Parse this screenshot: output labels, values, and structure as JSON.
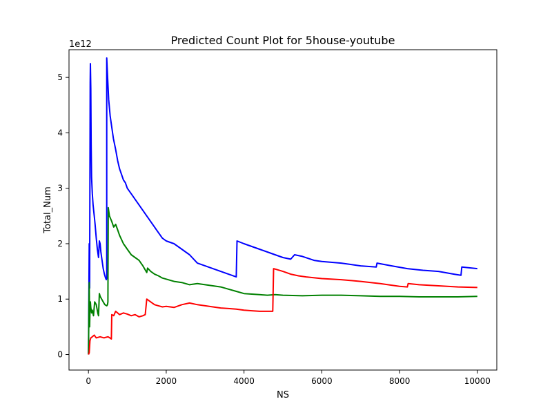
{
  "chart_data": {
    "type": "line",
    "title": "Predicted Count Plot for 5house-youtube",
    "xlabel": "NS",
    "ylabel": "Total_Num",
    "offset_text": "1e12",
    "xlim": [
      -500,
      10500
    ],
    "ylim": [
      -0.28,
      5.5
    ],
    "x_ticks": [
      0,
      2000,
      4000,
      6000,
      8000,
      10000
    ],
    "x_tick_labels": [
      "0",
      "2000",
      "4000",
      "6000",
      "8000",
      "10000"
    ],
    "y_ticks": [
      0,
      1,
      2,
      3,
      4,
      5
    ],
    "y_tick_labels": [
      "0",
      "1",
      "2",
      "3",
      "4",
      "5"
    ],
    "grid": false,
    "legend": "none",
    "series": [
      {
        "color": "#0000ff",
        "points": [
          [
            0,
            0
          ],
          [
            20,
            2.0
          ],
          [
            25,
            1.6
          ],
          [
            30,
            1.2
          ],
          [
            40,
            3.5
          ],
          [
            45,
            4.9
          ],
          [
            50,
            5.25
          ],
          [
            60,
            4.8
          ],
          [
            70,
            3.8
          ],
          [
            80,
            3.2
          ],
          [
            100,
            2.9
          ],
          [
            120,
            2.7
          ],
          [
            150,
            2.5
          ],
          [
            170,
            2.35
          ],
          [
            200,
            2.1
          ],
          [
            230,
            1.9
          ],
          [
            260,
            1.75
          ],
          [
            280,
            2.05
          ],
          [
            300,
            2.0
          ],
          [
            320,
            1.85
          ],
          [
            350,
            1.7
          ],
          [
            380,
            1.55
          ],
          [
            410,
            1.45
          ],
          [
            440,
            1.38
          ],
          [
            460,
            1.35
          ],
          [
            470,
            1.38
          ],
          [
            470,
            5.35
          ],
          [
            480,
            5.2
          ],
          [
            520,
            4.6
          ],
          [
            560,
            4.3
          ],
          [
            600,
            4.1
          ],
          [
            640,
            3.9
          ],
          [
            700,
            3.7
          ],
          [
            750,
            3.5
          ],
          [
            800,
            3.35
          ],
          [
            850,
            3.25
          ],
          [
            900,
            3.15
          ],
          [
            950,
            3.1
          ],
          [
            1000,
            3.0
          ],
          [
            1100,
            2.9
          ],
          [
            1200,
            2.8
          ],
          [
            1300,
            2.7
          ],
          [
            1400,
            2.6
          ],
          [
            1500,
            2.5
          ],
          [
            1600,
            2.4
          ],
          [
            1700,
            2.3
          ],
          [
            1800,
            2.2
          ],
          [
            1900,
            2.1
          ],
          [
            2000,
            2.05
          ],
          [
            2200,
            2.0
          ],
          [
            2400,
            1.9
          ],
          [
            2600,
            1.8
          ],
          [
            2800,
            1.65
          ],
          [
            3000,
            1.6
          ],
          [
            3200,
            1.55
          ],
          [
            3400,
            1.5
          ],
          [
            3600,
            1.45
          ],
          [
            3800,
            1.4
          ],
          [
            3820,
            2.05
          ],
          [
            4000,
            2.0
          ],
          [
            4200,
            1.95
          ],
          [
            4400,
            1.9
          ],
          [
            4600,
            1.85
          ],
          [
            4800,
            1.8
          ],
          [
            5000,
            1.75
          ],
          [
            5200,
            1.72
          ],
          [
            5300,
            1.8
          ],
          [
            5500,
            1.77
          ],
          [
            5800,
            1.7
          ],
          [
            6000,
            1.68
          ],
          [
            6500,
            1.65
          ],
          [
            7000,
            1.6
          ],
          [
            7400,
            1.58
          ],
          [
            7420,
            1.65
          ],
          [
            7800,
            1.6
          ],
          [
            8200,
            1.55
          ],
          [
            8600,
            1.52
          ],
          [
            9000,
            1.5
          ],
          [
            9400,
            1.45
          ],
          [
            9580,
            1.43
          ],
          [
            9600,
            1.58
          ],
          [
            10000,
            1.55
          ]
        ]
      },
      {
        "color": "#008000",
        "points": [
          [
            0,
            0
          ],
          [
            20,
            1.3
          ],
          [
            30,
            0.5
          ],
          [
            40,
            0.8
          ],
          [
            50,
            0.95
          ],
          [
            60,
            0.85
          ],
          [
            80,
            0.75
          ],
          [
            100,
            0.8
          ],
          [
            130,
            0.7
          ],
          [
            160,
            0.95
          ],
          [
            200,
            0.9
          ],
          [
            240,
            0.75
          ],
          [
            260,
            0.7
          ],
          [
            280,
            1.1
          ],
          [
            300,
            1.05
          ],
          [
            340,
            1.0
          ],
          [
            380,
            0.95
          ],
          [
            420,
            0.9
          ],
          [
            470,
            0.88
          ],
          [
            490,
            0.9
          ],
          [
            500,
            0.95
          ],
          [
            510,
            2.65
          ],
          [
            540,
            2.5
          ],
          [
            600,
            2.4
          ],
          [
            650,
            2.3
          ],
          [
            700,
            2.35
          ],
          [
            750,
            2.25
          ],
          [
            800,
            2.15
          ],
          [
            900,
            2.0
          ],
          [
            1000,
            1.9
          ],
          [
            1100,
            1.8
          ],
          [
            1200,
            1.75
          ],
          [
            1300,
            1.7
          ],
          [
            1400,
            1.6
          ],
          [
            1500,
            1.48
          ],
          [
            1520,
            1.56
          ],
          [
            1600,
            1.5
          ],
          [
            1700,
            1.45
          ],
          [
            1800,
            1.42
          ],
          [
            1900,
            1.38
          ],
          [
            2000,
            1.36
          ],
          [
            2200,
            1.32
          ],
          [
            2400,
            1.3
          ],
          [
            2600,
            1.26
          ],
          [
            2800,
            1.28
          ],
          [
            3000,
            1.26
          ],
          [
            3200,
            1.24
          ],
          [
            3400,
            1.22
          ],
          [
            3600,
            1.18
          ],
          [
            3800,
            1.14
          ],
          [
            4000,
            1.1
          ],
          [
            4200,
            1.09
          ],
          [
            4400,
            1.08
          ],
          [
            4600,
            1.07
          ],
          [
            4800,
            1.08
          ],
          [
            5000,
            1.07
          ],
          [
            5500,
            1.06
          ],
          [
            6000,
            1.07
          ],
          [
            6500,
            1.07
          ],
          [
            7000,
            1.06
          ],
          [
            7500,
            1.05
          ],
          [
            8000,
            1.05
          ],
          [
            8500,
            1.04
          ],
          [
            9000,
            1.04
          ],
          [
            9500,
            1.04
          ],
          [
            10000,
            1.05
          ]
        ]
      },
      {
        "color": "#ff0000",
        "points": [
          [
            0,
            0
          ],
          [
            20,
            0.03
          ],
          [
            30,
            0.15
          ],
          [
            40,
            0.25
          ],
          [
            60,
            0.3
          ],
          [
            100,
            0.32
          ],
          [
            150,
            0.35
          ],
          [
            200,
            0.3
          ],
          [
            300,
            0.32
          ],
          [
            400,
            0.3
          ],
          [
            500,
            0.32
          ],
          [
            550,
            0.3
          ],
          [
            590,
            0.28
          ],
          [
            600,
            0.72
          ],
          [
            650,
            0.7
          ],
          [
            700,
            0.78
          ],
          [
            800,
            0.72
          ],
          [
            900,
            0.75
          ],
          [
            1000,
            0.73
          ],
          [
            1100,
            0.7
          ],
          [
            1200,
            0.72
          ],
          [
            1300,
            0.68
          ],
          [
            1400,
            0.7
          ],
          [
            1460,
            0.72
          ],
          [
            1500,
            1.0
          ],
          [
            1600,
            0.95
          ],
          [
            1700,
            0.9
          ],
          [
            1800,
            0.88
          ],
          [
            1900,
            0.86
          ],
          [
            2000,
            0.87
          ],
          [
            2200,
            0.85
          ],
          [
            2400,
            0.9
          ],
          [
            2600,
            0.93
          ],
          [
            2800,
            0.9
          ],
          [
            3000,
            0.88
          ],
          [
            3200,
            0.86
          ],
          [
            3400,
            0.84
          ],
          [
            3600,
            0.83
          ],
          [
            3800,
            0.82
          ],
          [
            4000,
            0.8
          ],
          [
            4200,
            0.79
          ],
          [
            4400,
            0.78
          ],
          [
            4600,
            0.78
          ],
          [
            4740,
            0.78
          ],
          [
            4760,
            1.55
          ],
          [
            5000,
            1.5
          ],
          [
            5200,
            1.45
          ],
          [
            5400,
            1.42
          ],
          [
            5600,
            1.4
          ],
          [
            6000,
            1.37
          ],
          [
            6500,
            1.35
          ],
          [
            7000,
            1.32
          ],
          [
            7500,
            1.28
          ],
          [
            8000,
            1.23
          ],
          [
            8200,
            1.22
          ],
          [
            8220,
            1.28
          ],
          [
            8500,
            1.26
          ],
          [
            9000,
            1.24
          ],
          [
            9500,
            1.22
          ],
          [
            10000,
            1.21
          ]
        ]
      }
    ]
  }
}
